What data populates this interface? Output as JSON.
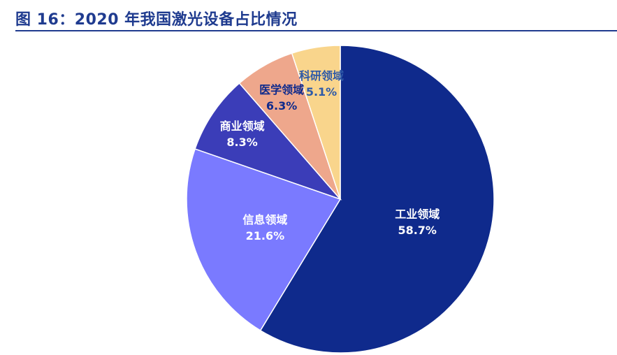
{
  "figure": {
    "title": "图 16：2020 年我国激光设备占比情况"
  },
  "chart_data": {
    "type": "pie",
    "title": "",
    "start_angle_deg": 0,
    "direction": "clockwise",
    "slices": [
      {
        "label": "工业领域",
        "value": 58.7,
        "value_label": "58.7%",
        "color": "#0f2a8c",
        "text_color": "#ffffff"
      },
      {
        "label": "信息领域",
        "value": 21.6,
        "value_label": "21.6%",
        "color": "#7a7aff",
        "text_color": "#ffffff"
      },
      {
        "label": "商业领域",
        "value": 8.3,
        "value_label": "8.3%",
        "color": "#3b3db8",
        "text_color": "#ffffff"
      },
      {
        "label": "医学领域",
        "value": 6.3,
        "value_label": "6.3%",
        "color": "#eea78c",
        "text_color": "#0f2a8c"
      },
      {
        "label": "科研领域",
        "value": 5.1,
        "value_label": "5.1%",
        "color": "#f9d58c",
        "text_color": "#2e5aa8"
      }
    ]
  }
}
